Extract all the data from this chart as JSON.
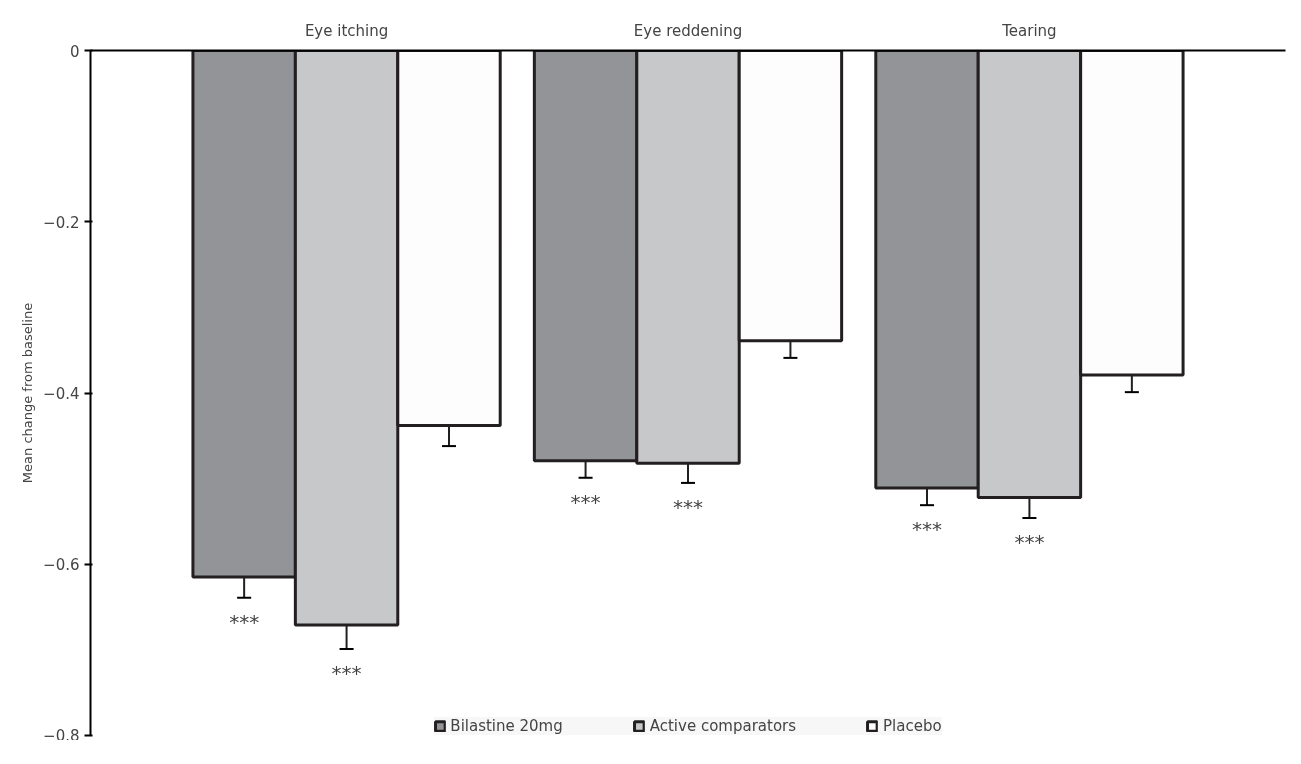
{
  "chart_data": {
    "type": "bar",
    "ylabel": "Mean change from baseline",
    "categories": [
      "Eye itching",
      "Eye reddening",
      "Tearing"
    ],
    "series": [
      {
        "name": "Bilastine 20mg",
        "color": "#939497",
        "values": [
          -0.615,
          -0.479,
          -0.511
        ],
        "errors": [
          0.024,
          0.02,
          0.02
        ],
        "value_labels": [
          "***",
          "***",
          "***"
        ]
      },
      {
        "name": "Active comparators",
        "color": "#c7c8ca",
        "values": [
          -0.671,
          -0.482,
          -0.522
        ],
        "errors": [
          0.028,
          0.023,
          0.024
        ],
        "value_labels": [
          "***",
          "***",
          "***"
        ]
      },
      {
        "name": "Placebo",
        "color": "#fdfdfd",
        "values": [
          -0.438,
          -0.339,
          -0.379
        ],
        "errors": [
          0.024,
          0.02,
          0.02
        ]
      }
    ],
    "ylim": [
      -0.8,
      0
    ],
    "yticks": [
      0,
      -0.2,
      -0.4,
      -0.6,
      -0.8
    ],
    "grid": false,
    "legend": "bottom"
  }
}
